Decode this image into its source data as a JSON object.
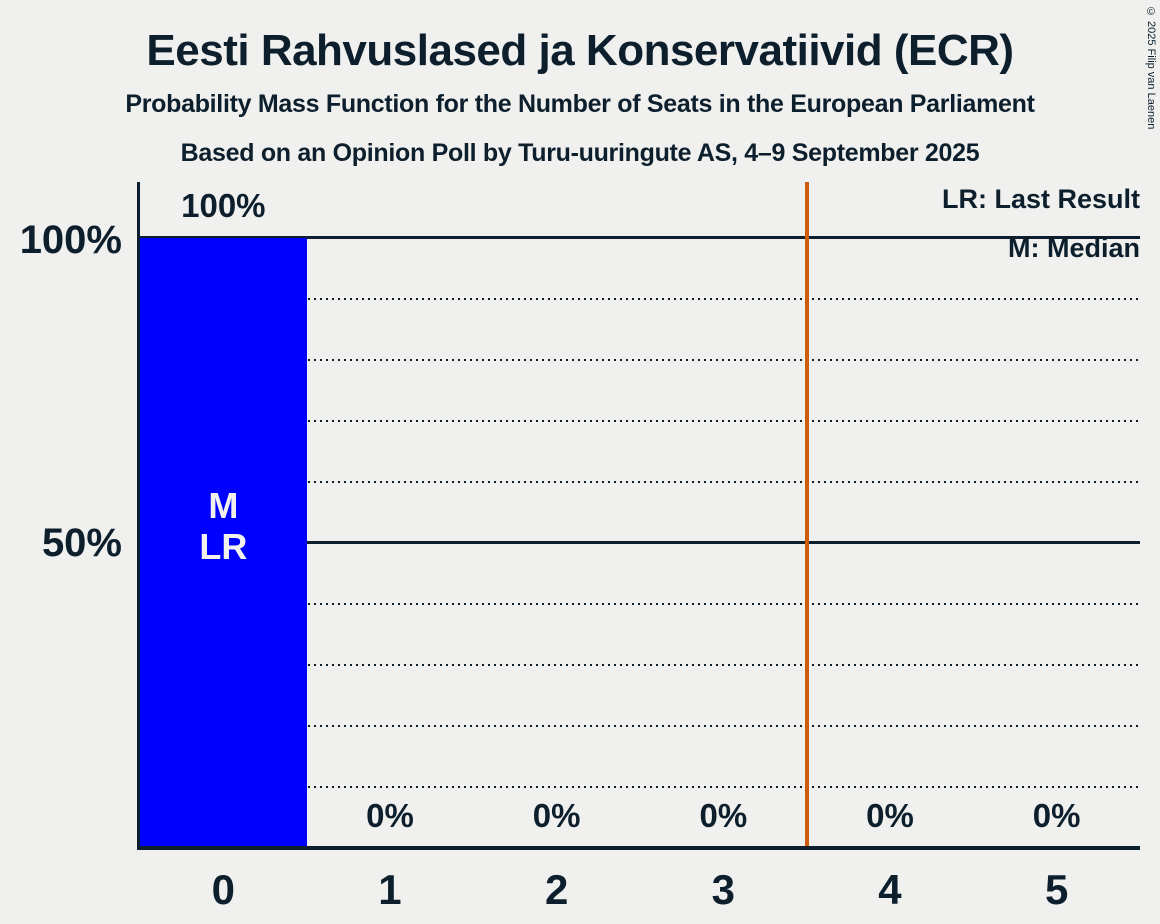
{
  "header": {
    "title": "Eesti Rahvuslased ja Konservatiivid (ECR)",
    "subtitle1": "Probability Mass Function for the Number of Seats in the European Parliament",
    "subtitle2": "Based on an Opinion Poll by Turu-uuringute AS, 4–9 September 2025"
  },
  "copyright": "© 2025 Filip van Laenen",
  "legend": {
    "lr": "LR: Last Result",
    "m": "M: Median"
  },
  "y_axis": {
    "labels": [
      "100%",
      "50%"
    ]
  },
  "chart_data": {
    "type": "bar",
    "title": "Eesti Rahvuslased ja Konservatiivid (ECR)",
    "categories": [
      "0",
      "1",
      "2",
      "3",
      "4",
      "5"
    ],
    "values": [
      100,
      0,
      0,
      0,
      0,
      0
    ],
    "value_labels": [
      "100%",
      "0%",
      "0%",
      "0%",
      "0%",
      "0%"
    ],
    "ylim": [
      0,
      100
    ],
    "y_tick_labels": [
      "100%",
      "50%"
    ],
    "grid": "dotted line every 10%, solid line at 50% and 100%",
    "legend_position": "top-right",
    "bar_annotations": [
      {
        "bar": "0",
        "lines": [
          "M",
          "LR"
        ],
        "meaning": [
          "Median",
          "Last Result"
        ]
      }
    ],
    "threshold_line": {
      "x": 3.5,
      "color": "#cc5c0e"
    },
    "colors": {
      "bar": "#0000ff",
      "text": "#0d1f2d",
      "background": "#f0f0ee",
      "annotation_text": "#f2f1ee"
    }
  }
}
